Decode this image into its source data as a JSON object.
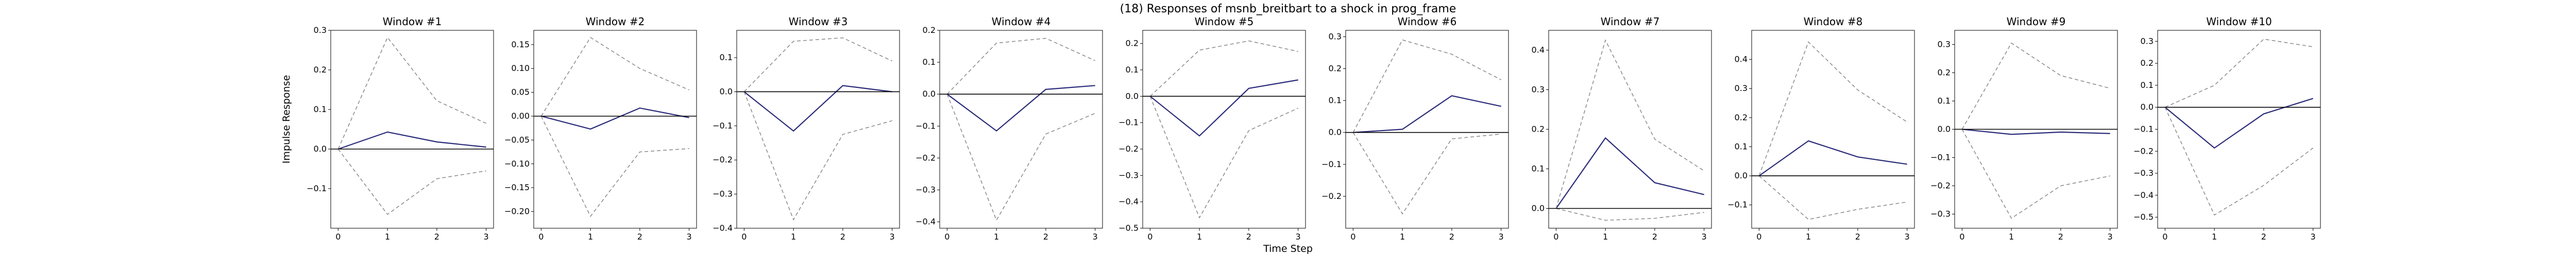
{
  "figure": {
    "title": "(18) Responses of msnb_breitbart to a shock in prog_frame",
    "xlabel": "Time Step",
    "ylabel": "Impulse Response"
  },
  "colors": {
    "irf": "#2b2b7a",
    "band": "#888888",
    "zero": "#000000"
  },
  "chart_data": [
    {
      "type": "line",
      "title": "Window #1",
      "x": [
        0,
        1,
        2,
        3
      ],
      "series": [
        {
          "role": "irf",
          "values": [
            0,
            0.043,
            0.018,
            0.005
          ]
        },
        {
          "role": "upper",
          "values": [
            0,
            0.282,
            0.122,
            0.065
          ]
        },
        {
          "role": "lower",
          "values": [
            0,
            -0.165,
            -0.075,
            -0.055
          ]
        }
      ],
      "ylim": [
        -0.2,
        0.3
      ],
      "yticks": [
        -0.1,
        0.0,
        0.1,
        0.2,
        0.3
      ],
      "decimals": 1
    },
    {
      "type": "line",
      "title": "Window #2",
      "x": [
        0,
        1,
        2,
        3
      ],
      "series": [
        {
          "role": "irf",
          "values": [
            0,
            -0.027,
            0.017,
            -0.003
          ]
        },
        {
          "role": "upper",
          "values": [
            0,
            0.165,
            0.1,
            0.055
          ]
        },
        {
          "role": "lower",
          "values": [
            0,
            -0.21,
            -0.075,
            -0.068
          ]
        }
      ],
      "ylim": [
        -0.235,
        0.18
      ],
      "yticks": [
        -0.2,
        -0.15,
        -0.1,
        -0.05,
        0.0,
        0.05,
        0.1,
        0.15
      ],
      "decimals": 2
    },
    {
      "type": "line",
      "title": "Window #3",
      "x": [
        0,
        1,
        2,
        3
      ],
      "series": [
        {
          "role": "irf",
          "values": [
            0,
            -0.115,
            0.018,
            0.0
          ]
        },
        {
          "role": "upper",
          "values": [
            0,
            0.148,
            0.158,
            0.09
          ]
        },
        {
          "role": "lower",
          "values": [
            0,
            -0.375,
            -0.125,
            -0.085
          ]
        }
      ],
      "ylim": [
        -0.4,
        0.18
      ],
      "yticks": [
        -0.4,
        -0.3,
        -0.2,
        -0.1,
        0.0,
        0.1
      ],
      "decimals": 1
    },
    {
      "type": "line",
      "title": "Window #4",
      "x": [
        0,
        1,
        2,
        3
      ],
      "series": [
        {
          "role": "irf",
          "values": [
            0,
            -0.115,
            0.015,
            0.027
          ]
        },
        {
          "role": "upper",
          "values": [
            0,
            0.16,
            0.175,
            0.105
          ]
        },
        {
          "role": "lower",
          "values": [
            0,
            -0.395,
            -0.125,
            -0.06
          ]
        }
      ],
      "ylim": [
        -0.42,
        0.2
      ],
      "yticks": [
        -0.4,
        -0.3,
        -0.2,
        -0.1,
        0.0,
        0.1,
        0.2
      ],
      "decimals": 1
    },
    {
      "type": "line",
      "title": "Window #5",
      "x": [
        0,
        1,
        2,
        3
      ],
      "series": [
        {
          "role": "irf",
          "values": [
            0,
            -0.15,
            0.03,
            0.062
          ]
        },
        {
          "role": "upper",
          "values": [
            0,
            0.175,
            0.21,
            0.17
          ]
        },
        {
          "role": "lower",
          "values": [
            0,
            -0.46,
            -0.13,
            -0.045
          ]
        }
      ],
      "ylim": [
        -0.5,
        0.25
      ],
      "yticks": [
        -0.5,
        -0.4,
        -0.3,
        -0.2,
        -0.1,
        0.0,
        0.1,
        0.2
      ],
      "decimals": 1
    },
    {
      "type": "line",
      "title": "Window #6",
      "x": [
        0,
        1,
        2,
        3
      ],
      "series": [
        {
          "role": "irf",
          "values": [
            0,
            0.01,
            0.115,
            0.082
          ]
        },
        {
          "role": "upper",
          "values": [
            0,
            0.29,
            0.245,
            0.165
          ]
        },
        {
          "role": "lower",
          "values": [
            0,
            -0.255,
            -0.02,
            -0.005
          ]
        }
      ],
      "ylim": [
        -0.3,
        0.32
      ],
      "yticks": [
        -0.2,
        -0.1,
        0.0,
        0.1,
        0.2,
        0.3
      ],
      "decimals": 1
    },
    {
      "type": "line",
      "title": "Window #7",
      "x": [
        0,
        1,
        2,
        3
      ],
      "series": [
        {
          "role": "irf",
          "values": [
            0,
            0.178,
            0.065,
            0.035
          ]
        },
        {
          "role": "upper",
          "values": [
            0,
            0.425,
            0.175,
            0.095
          ]
        },
        {
          "role": "lower",
          "values": [
            0,
            -0.03,
            -0.025,
            -0.01
          ]
        }
      ],
      "ylim": [
        -0.05,
        0.45
      ],
      "yticks": [
        0.0,
        0.1,
        0.2,
        0.3,
        0.4
      ],
      "decimals": 1
    },
    {
      "type": "line",
      "title": "Window #8",
      "x": [
        0,
        1,
        2,
        3
      ],
      "series": [
        {
          "role": "irf",
          "values": [
            0,
            0.12,
            0.065,
            0.04
          ]
        },
        {
          "role": "upper",
          "values": [
            0,
            0.46,
            0.295,
            0.185
          ]
        },
        {
          "role": "lower",
          "values": [
            0,
            -0.15,
            -0.115,
            -0.09
          ]
        }
      ],
      "ylim": [
        -0.18,
        0.5
      ],
      "yticks": [
        -0.1,
        0.0,
        0.1,
        0.2,
        0.3,
        0.4
      ],
      "decimals": 1
    },
    {
      "type": "line",
      "title": "Window #9",
      "x": [
        0,
        1,
        2,
        3
      ],
      "series": [
        {
          "role": "irf",
          "values": [
            0,
            -0.018,
            -0.01,
            -0.015
          ]
        },
        {
          "role": "upper",
          "values": [
            0,
            0.305,
            0.19,
            0.145
          ]
        },
        {
          "role": "lower",
          "values": [
            0,
            -0.315,
            -0.2,
            -0.165
          ]
        }
      ],
      "ylim": [
        -0.35,
        0.35
      ],
      "yticks": [
        -0.3,
        -0.2,
        -0.1,
        0.0,
        0.1,
        0.2,
        0.3
      ],
      "decimals": 1
    },
    {
      "type": "line",
      "title": "Window #10",
      "x": [
        0,
        1,
        2,
        3
      ],
      "series": [
        {
          "role": "irf",
          "values": [
            0,
            -0.185,
            -0.03,
            0.04
          ]
        },
        {
          "role": "upper",
          "values": [
            0,
            0.1,
            0.31,
            0.275
          ]
        },
        {
          "role": "lower",
          "values": [
            0,
            -0.49,
            -0.355,
            -0.185
          ]
        }
      ],
      "ylim": [
        -0.55,
        0.35
      ],
      "yticks": [
        -0.5,
        -0.4,
        -0.3,
        -0.2,
        -0.1,
        0.0,
        0.1,
        0.2,
        0.3
      ],
      "decimals": 1
    }
  ]
}
